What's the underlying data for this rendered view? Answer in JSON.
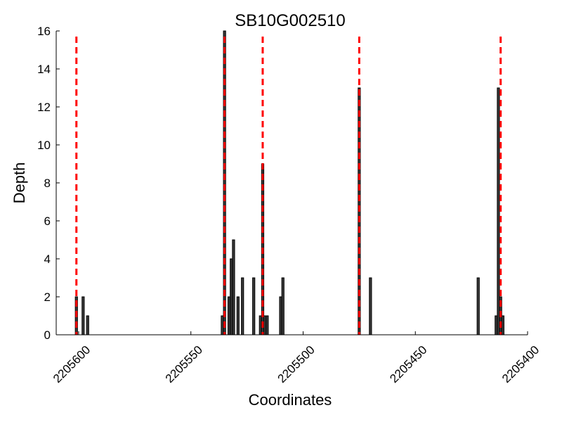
{
  "chart_data": {
    "type": "bar",
    "title": "SB10G002510",
    "xlabel": "Coordinates",
    "ylabel": "Depth",
    "xlim": [
      2205610,
      2205400
    ],
    "ylim": [
      0,
      16
    ],
    "x_reversed": true,
    "grid": false,
    "x_ticks": [
      2205600,
      2205550,
      2205500,
      2205450,
      2205400
    ],
    "x_tick_labels": [
      "2205600",
      "2205550",
      "2205500",
      "2205450",
      "2205400"
    ],
    "x_tick_rotation": 45,
    "y_ticks": [
      0,
      2,
      4,
      6,
      8,
      10,
      12,
      14,
      16
    ],
    "y_tick_labels": [
      "0",
      "2",
      "4",
      "6",
      "8",
      "10",
      "12",
      "14",
      "16"
    ],
    "bar_color": "#3a3a3a",
    "bar_edge_color": "#000000",
    "bars": [
      {
        "x": 2205601,
        "value": 2
      },
      {
        "x": 2205598,
        "value": 2
      },
      {
        "x": 2205596,
        "value": 1
      },
      {
        "x": 2205536,
        "value": 1
      },
      {
        "x": 2205535,
        "value": 16
      },
      {
        "x": 2205533,
        "value": 2
      },
      {
        "x": 2205532,
        "value": 4
      },
      {
        "x": 2205531,
        "value": 5
      },
      {
        "x": 2205529,
        "value": 2
      },
      {
        "x": 2205527,
        "value": 3
      },
      {
        "x": 2205522,
        "value": 3
      },
      {
        "x": 2205519,
        "value": 1
      },
      {
        "x": 2205518,
        "value": 9
      },
      {
        "x": 2205517,
        "value": 1
      },
      {
        "x": 2205516,
        "value": 1
      },
      {
        "x": 2205510,
        "value": 2
      },
      {
        "x": 2205509,
        "value": 3
      },
      {
        "x": 2205475,
        "value": 13
      },
      {
        "x": 2205470,
        "value": 3
      },
      {
        "x": 2205422,
        "value": 3
      },
      {
        "x": 2205414,
        "value": 1
      },
      {
        "x": 2205413,
        "value": 13
      },
      {
        "x": 2205412,
        "value": 2
      },
      {
        "x": 2205411,
        "value": 1
      }
    ],
    "reference_lines": {
      "orientation": "vertical",
      "style": "dashed",
      "color": "#ff0000",
      "x": [
        2205601,
        2205535,
        2205518,
        2205475,
        2205412
      ]
    }
  }
}
